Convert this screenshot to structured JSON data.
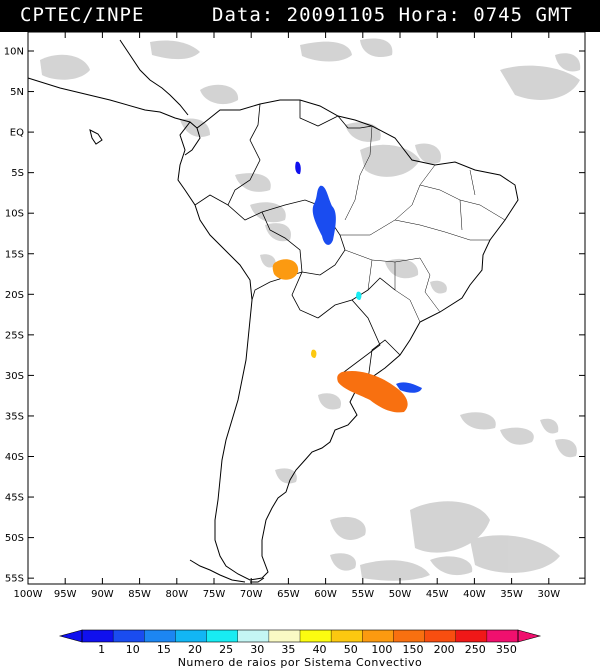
{
  "header": {
    "source": "CPTEC/INPE",
    "date_label": "Data:",
    "date": "20091105",
    "time_label": "Hora:",
    "time": "0745",
    "tz": "GMT"
  },
  "lat_labels": [
    "10N",
    "5N",
    "EQ",
    "5S",
    "10S",
    "15S",
    "20S",
    "25S",
    "30S",
    "35S",
    "40S",
    "45S",
    "50S",
    "55S"
  ],
  "lon_labels": [
    "100W",
    "95W",
    "90W",
    "85W",
    "80W",
    "75W",
    "70W",
    "65W",
    "60W",
    "55W",
    "50W",
    "45W",
    "40W",
    "35W",
    "30W"
  ],
  "colorbar": {
    "title": "Numero de raios por Sistema Convectivo",
    "labels": [
      "1",
      "10",
      "15",
      "20",
      "25",
      "30",
      "35",
      "40",
      "50",
      "100",
      "150",
      "200",
      "250",
      "350"
    ],
    "colors": [
      "#1010ee",
      "#1a4cf0",
      "#1c86f2",
      "#12b6f4",
      "#18ecf2",
      "#c4f6f4",
      "#fafac4",
      "#fcfc10",
      "#fcc810",
      "#fc9a10",
      "#f87010",
      "#f84e10",
      "#f01818",
      "#f0106e"
    ]
  },
  "map": {
    "lon_range": [
      -100,
      -28
    ],
    "lat_range": [
      -56,
      12
    ],
    "lightning_systems": [
      {
        "lon": -63.5,
        "lat": -4.2,
        "color": "#1010ee"
      },
      {
        "lon": -60.0,
        "lat": -11.0,
        "color": "#1a4cf0"
      },
      {
        "lon": -65.2,
        "lat": -17.2,
        "color": "#fc9a10"
      },
      {
        "lon": -55.6,
        "lat": -20.2,
        "color": "#18ecf2"
      },
      {
        "lon": -61.0,
        "lat": -27.3,
        "color": "#fcc810"
      },
      {
        "lon": -54.8,
        "lat": -31.6,
        "color": "#f87010"
      },
      {
        "lon": -48.0,
        "lat": -31.6,
        "color": "#1a4cf0"
      }
    ]
  }
}
